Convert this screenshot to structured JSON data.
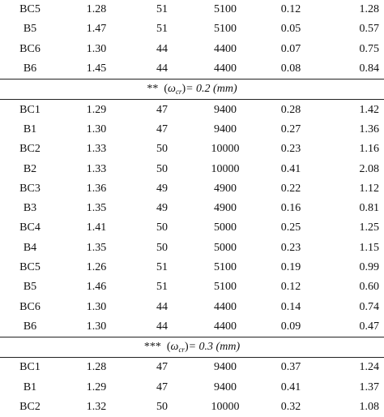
{
  "groups": [
    {
      "header": null,
      "rows": [
        [
          "BC5",
          "1.28",
          "51",
          "5100",
          "0.12",
          "1.28"
        ],
        [
          "B5",
          "1.47",
          "51",
          "5100",
          "0.05",
          "0.57"
        ],
        [
          "BC6",
          "1.30",
          "44",
          "4400",
          "0.07",
          "0.75"
        ],
        [
          "B6",
          "1.45",
          "44",
          "4400",
          "0.08",
          "0.84"
        ]
      ]
    },
    {
      "header": {
        "marker": "**",
        "omega": "ω",
        "sub": "cr",
        "rest": "= 0.2 (mm)"
      },
      "rows": [
        [
          "BC1",
          "1.29",
          "47",
          "9400",
          "0.28",
          "1.42"
        ],
        [
          "B1",
          "1.30",
          "47",
          "9400",
          "0.27",
          "1.36"
        ],
        [
          "BC2",
          "1.33",
          "50",
          "10000",
          "0.23",
          "1.16"
        ],
        [
          "B2",
          "1.33",
          "50",
          "10000",
          "0.41",
          "2.08"
        ],
        [
          "BC3",
          "1.36",
          "49",
          "4900",
          "0.22",
          "1.12"
        ],
        [
          "B3",
          "1.35",
          "49",
          "4900",
          "0.16",
          "0.81"
        ],
        [
          "BC4",
          "1.41",
          "50",
          "5000",
          "0.25",
          "1.25"
        ],
        [
          "B4",
          "1.35",
          "50",
          "5000",
          "0.23",
          "1.15"
        ],
        [
          "BC5",
          "1.26",
          "51",
          "5100",
          "0.19",
          "0.99"
        ],
        [
          "B5",
          "1.46",
          "51",
          "5100",
          "0.12",
          "0.60"
        ],
        [
          "BC6",
          "1.30",
          "44",
          "4400",
          "0.14",
          "0.74"
        ],
        [
          "B6",
          "1.30",
          "44",
          "4400",
          "0.09",
          "0.47"
        ]
      ]
    },
    {
      "header": {
        "marker": "***",
        "omega": "ω",
        "sub": "cr",
        "rest": "= 0.3 (mm)"
      },
      "rows": [
        [
          "BC1",
          "1.28",
          "47",
          "9400",
          "0.37",
          "1.24"
        ],
        [
          "B1",
          "1.29",
          "47",
          "9400",
          "0.41",
          "1.37"
        ],
        [
          "BC2",
          "1.32",
          "50",
          "10000",
          "0.32",
          "1.08"
        ]
      ]
    }
  ]
}
